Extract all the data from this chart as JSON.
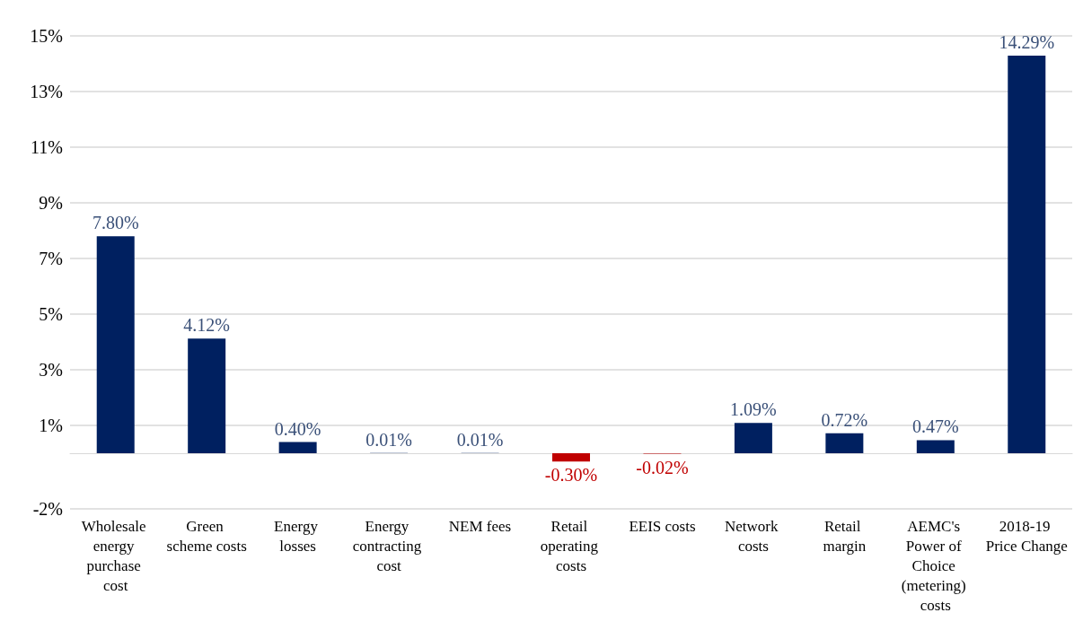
{
  "chart_data": {
    "type": "bar",
    "categories": [
      "Wholesale energy purchase cost",
      "Green scheme costs",
      "Energy losses",
      "Energy contracting cost",
      "NEM fees",
      "Retail operating costs",
      "EEIS costs",
      "Network costs",
      "Retail margin",
      "AEMC's Power of Choice (metering) costs",
      "2018-19 Price Change"
    ],
    "values": [
      7.8,
      4.12,
      0.4,
      0.01,
      0.01,
      -0.3,
      -0.02,
      1.09,
      0.72,
      0.47,
      14.29
    ],
    "colors": [
      "#002060",
      "#002060",
      "#002060",
      "#002060",
      "#002060",
      "#c00000",
      "#c00000",
      "#002060",
      "#002060",
      "#002060",
      "#002060"
    ],
    "value_labels": [
      "7.80%",
      "4.12%",
      "0.40%",
      "0.01%",
      "0.01%",
      "-0.30%",
      "-0.02%",
      "1.09%",
      "0.72%",
      "0.47%",
      "14.29%"
    ],
    "ylim": [
      -2,
      15
    ],
    "yticks": [
      {
        "value": -2,
        "label": "-2%"
      },
      {
        "value": 1,
        "label": "1%"
      },
      {
        "value": 3,
        "label": "3%"
      },
      {
        "value": 5,
        "label": "5%"
      },
      {
        "value": 7,
        "label": "7%"
      },
      {
        "value": 9,
        "label": "9%"
      },
      {
        "value": 11,
        "label": "11%"
      },
      {
        "value": 13,
        "label": "13%"
      },
      {
        "value": 15,
        "label": "15%"
      }
    ],
    "grid": "y"
  }
}
